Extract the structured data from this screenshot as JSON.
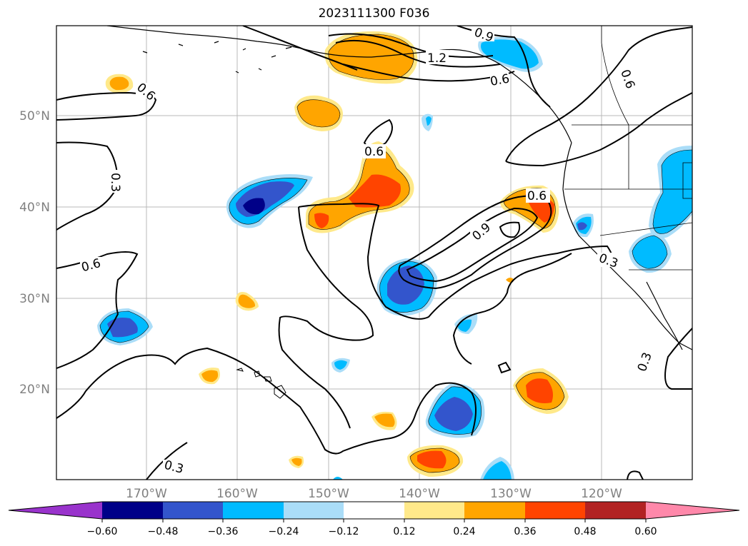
{
  "title": "2023111300 F036",
  "map": {
    "lon_labels": [
      "170°W",
      "160°W",
      "150°W",
      "140°W",
      "130°W",
      "120°W"
    ],
    "lat_labels": [
      "50°N",
      "40°N",
      "30°N",
      "20°N"
    ],
    "contour_labels": [
      "0.9",
      "1.2",
      "0.6",
      "0.6",
      "0.6",
      "0.3",
      "0.6",
      "0.6",
      "0.9",
      "0.3",
      "0.3",
      "0.3",
      "0.6"
    ]
  },
  "colorbar": {
    "colors": [
      "#9933cc",
      "#000088",
      "#3355cc",
      "#00bbff",
      "#aaddf8",
      "#ffffff",
      "#ffe98a",
      "#ffa500",
      "#ff4400",
      "#b22222",
      "#ff88aa"
    ],
    "tick_labels": [
      "−0.60",
      "−0.48",
      "−0.36",
      "−0.24",
      "−0.12",
      "0.12",
      "0.24",
      "0.36",
      "0.48",
      "0.60"
    ]
  }
}
